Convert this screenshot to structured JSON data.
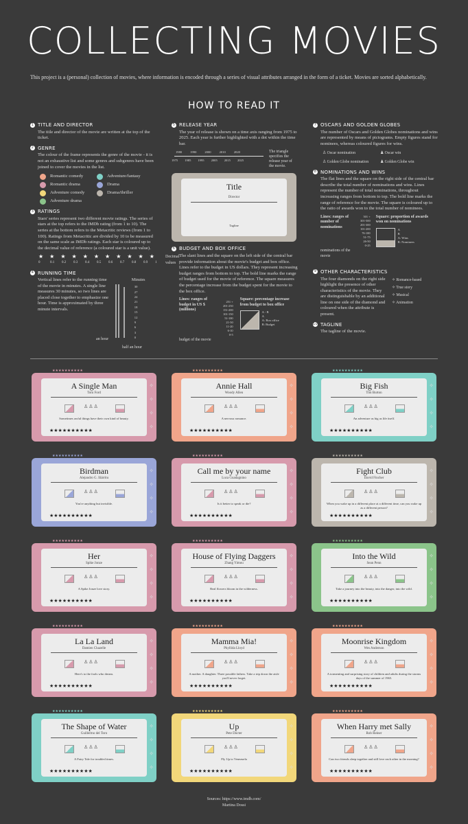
{
  "header": {
    "title": "COLLECTING MOVIES",
    "intro": "This project is a (personal) collection of movies, where information is encoded through a series of visual attributes arranged in the form of a ticket. Movies are sorted alphabetically.",
    "howto": "HOW TO READ IT"
  },
  "legend": {
    "title_director": {
      "num": "1",
      "heading": "TITLE AND DIRECTOR",
      "text": "The title and director of the movie are written at the top of the ticket."
    },
    "genre": {
      "num": "2",
      "heading": "GENRE",
      "text": "The colour of the frame represents the genre of the movie - it is not an exhaustive list and some genres and subgenres have been joined to cover the movies in the list.",
      "items": [
        {
          "label": "Romantic comedy",
          "color": "#f0a58a"
        },
        {
          "label": "Adventure/fantasy",
          "color": "#7fd0c6"
        },
        {
          "label": "Romantic drama",
          "color": "#d79aac"
        },
        {
          "label": "Drama",
          "color": "#9aa6d8"
        },
        {
          "label": "Adventure comedy",
          "color": "#f2d77a"
        },
        {
          "label": "Drama/thriller",
          "color": "#bcb6ad"
        },
        {
          "label": "Adventure drama",
          "color": "#8bc48a"
        }
      ]
    },
    "ratings": {
      "num": "3",
      "heading": "RATINGS",
      "text": "Stars' series represent two different movie ratings. The series of stars at the top refers to the IMDb rating (from 1 to 10). The series at the bottom refers to the Metacritic reviews (from 1 to 100). Ratings from Metacritic are divided by 10 to be measured on the same scale as IMDb ratings. Each star is coloured up to the decimal value of reference (a coloured star is a unit value).",
      "scale": [
        "0",
        "0.1",
        "0.2",
        "0.3",
        "0.4",
        "0.5",
        "0.6",
        "0.7",
        "0.8",
        "0.9",
        "1"
      ],
      "scale_label": "Decimal values"
    },
    "running": {
      "num": "4",
      "heading": "RUNNING TIME",
      "text": "Vertical lines refer to the running time of the movie in minutes. A single line measures 30 minutes, so two lines are placed close together to emphasize one hour. Time is approximated by three minute intervals.",
      "minutes_label": "Minutes",
      "ticks": [
        "30",
        "27",
        "24",
        "21",
        "18",
        "15",
        "12",
        "9",
        "6",
        "3",
        "0"
      ],
      "an_hour": "an hour",
      "half_hour": "half an hour"
    },
    "release": {
      "num": "5",
      "heading": "RELEASE YEAR",
      "text": "The year of release is shown on a time axis ranging from 1975 to 2025. Each year is further highlighted with a dot within the time bar.",
      "years_top": [
        "1980",
        "1990",
        "2000",
        "2010",
        "2020"
      ],
      "years_bottom": [
        "1975",
        "1985",
        "1995",
        "2005",
        "2015",
        "2025"
      ],
      "note": "The triangle specifies the release year of the movie."
    },
    "sample": {
      "title": "Title",
      "director": "Director",
      "tagline": "Tagline"
    },
    "budget": {
      "num": "6",
      "heading": "BUDGET AND BOX OFFICE",
      "text": "The slant lines and the square on the left side of the central bar provide information about the movie's budget and box office. Lines refer to the budget in US dollars. They represent increasing budget ranges from bottom to top. The bold line marks the range of budget used for the movie of reference. The square measures the percentage increase from the budget spent for the movie to the box office.",
      "lines_label": "Lines: ranges of budget in US $ (millions)",
      "square_label": "Square: percentage increase from budget to box office",
      "ranges": [
        "251 +",
        "201-250",
        "151-200",
        "101-150",
        "51-100",
        "21-50",
        "11-20",
        "6-10",
        "0-5"
      ],
      "budget_of_movie": "budget of the movie",
      "ab": "A - B",
      "a": "A",
      "one": "1",
      "half": "0.5",
      "zero": "0",
      "a_box": "A: Box office",
      "b_budget": "B: Budget"
    },
    "oscars": {
      "num": "7",
      "heading": "OSCARS AND GOLDEN GLOBES",
      "text": "The number of Oscars and Golden Globes nominations and wins are represented by means of pictograms. Empty figures stand for nominees, whereas coloured figures for wins.",
      "oscar_nom": "Oscar nomination",
      "oscar_win": "Oscar win",
      "gg_nom": "Golden Globe nomination",
      "gg_win": "Golden Globe win"
    },
    "nominations": {
      "num": "8",
      "heading": "NOMINATIONS AND WINS",
      "text": "The flat lines and the square on the right side of the central bar describe the total number of nominations and wins. Lines represent the number of total nominations, throughout increasing ranges from bottom to top. The bold line marks the range of reference for the movie. The square is coloured up to the ratio of awards won to the total number of nominees.",
      "lines_label": "Lines: ranges of number of nominations",
      "square_label": "Square: proportion of awards won on nominations",
      "ranges": [
        "501 +",
        "301-500",
        "201-300",
        "101-200",
        "76-100",
        "51-75",
        "26-50",
        "0-25"
      ],
      "noms_of_movie": "nominations of the movie",
      "a": "A",
      "b": "B",
      "one": "1",
      "half": "0.5",
      "zero": "0",
      "a_wins": "A: Wins",
      "b_noms": "B: Nominees"
    },
    "other": {
      "num": "9",
      "heading": "OTHER CHARACTERISTICS",
      "text": "The four diamonds on the right side highlight the presence of other characteristics of the movie. They are distinguishable by an additional line on one side of the diamond and coloured when the attribute is present.",
      "items": [
        "Romance-based",
        "True story",
        "Musical",
        "Animation"
      ]
    },
    "tagline": {
      "num": "10",
      "heading": "TAGLINE",
      "text": "The tagline of the movie."
    }
  },
  "movies": [
    {
      "title": "A Single Man",
      "director": "Tom Ford",
      "tagline": "Sometimes awful things have their own kind of beauty.",
      "color": "#d79aac"
    },
    {
      "title": "Annie Hall",
      "director": "Woody Allen",
      "tagline": "A nervous romance.",
      "color": "#f0a58a"
    },
    {
      "title": "Big Fish",
      "director": "Tim Burton",
      "tagline": "An adventure as big as life itself.",
      "color": "#7fd0c6"
    },
    {
      "title": "Birdman",
      "director": "Alejandro G. Iñárritu",
      "tagline": "You're anything but invisible.",
      "color": "#9aa6d8"
    },
    {
      "title": "Call me by your name",
      "director": "Luca Guadagnino",
      "tagline": "Is it better to speak or die?",
      "color": "#d79aac"
    },
    {
      "title": "Fight Club",
      "director": "David Fincher",
      "tagline": "When you wake up in a different place at a different time, can you wake up as a different person?",
      "color": "#bcb6ad"
    },
    {
      "title": "Her",
      "director": "Spike Jonze",
      "tagline": "A Spike Jonze love story.",
      "color": "#d79aac"
    },
    {
      "title": "House of Flying Daggers",
      "director": "Zhang Yimou",
      "tagline": "Real flowers bloom in the wilderness.",
      "color": "#d79aac"
    },
    {
      "title": "Into the Wild",
      "director": "Sean Penn",
      "tagline": "Take a journey into the beauty, into the danger, into the wild.",
      "color": "#8bc48a"
    },
    {
      "title": "La La Land",
      "director": "Damien Chazelle",
      "tagline": "Here's to the fools who dream.",
      "color": "#d79aac"
    },
    {
      "title": "Mamma Mia!",
      "director": "Phyllida Lloyd",
      "tagline": "A mother. A daughter. Three possible fathers. Take a trip down the aisle you'll never forget.",
      "color": "#f0a58a"
    },
    {
      "title": "Moonrise Kingdom",
      "director": "Wes Anderson",
      "tagline": "A tormenting and surprising story of children and adults during the storms days of the summer of 1965.",
      "color": "#f0a58a"
    },
    {
      "title": "The Shape of Water",
      "director": "Guillermo del Toro",
      "tagline": "A Fairy Tale for troubled times.",
      "color": "#7fd0c6"
    },
    {
      "title": "Up",
      "director": "Pete Docter",
      "tagline": "Fly Up to Venezuela",
      "color": "#f2d77a"
    },
    {
      "title": "When Harry met Sally",
      "director": "Rob Reiner",
      "tagline": "Can two friends sleep together and still love each other in the morning?",
      "color": "#f0a58a"
    }
  ],
  "footer": {
    "sources": "Sources: https://www.imdb.com/",
    "author": "Martina Dossi"
  }
}
